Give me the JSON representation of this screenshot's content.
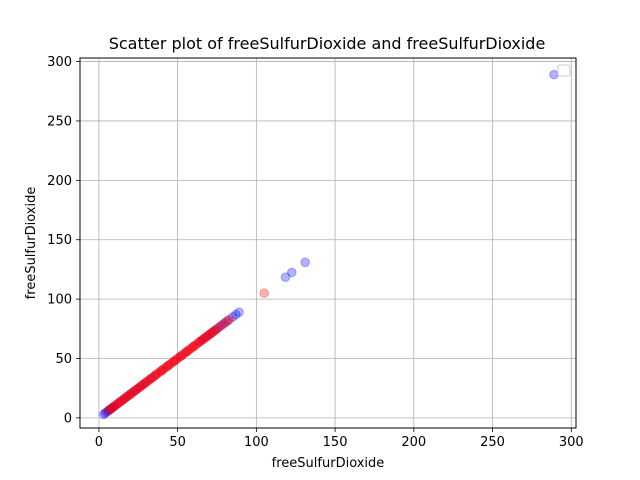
{
  "chart_data": {
    "type": "scatter",
    "title": "Scatter plot of freeSulfurDioxide and freeSulfurDioxide",
    "xlabel": "freeSulfurDioxide",
    "ylabel": "freeSulfurDioxide",
    "xlim": [
      -12,
      303
    ],
    "ylim": [
      -8.5,
      303
    ],
    "xticks": [
      0,
      50,
      100,
      150,
      200,
      250,
      300
    ],
    "yticks": [
      0,
      50,
      100,
      150,
      200,
      250,
      300
    ],
    "grid": true,
    "legend": {
      "placement": "top-right",
      "entries": []
    },
    "colors": {
      "series_a": "#0000ff",
      "series_b": "#ff0000",
      "grid": "#b0b0b0",
      "axis": "#000000"
    },
    "series": [
      {
        "color": "#0000ff",
        "alpha": 0.3,
        "points": [
          [
            3,
            3
          ],
          [
            4,
            4
          ],
          [
            5,
            5
          ],
          [
            6,
            6
          ],
          [
            7,
            7
          ],
          [
            8,
            8
          ],
          [
            9,
            9
          ],
          [
            10,
            10
          ],
          [
            12,
            12
          ],
          [
            14,
            14
          ],
          [
            16,
            16
          ],
          [
            18,
            18
          ],
          [
            20,
            20
          ],
          [
            22,
            22
          ],
          [
            24,
            24
          ],
          [
            26,
            26
          ],
          [
            28,
            28
          ],
          [
            30,
            30
          ],
          [
            33,
            33
          ],
          [
            36,
            36
          ],
          [
            40,
            40
          ],
          [
            44,
            44
          ],
          [
            48,
            48
          ],
          [
            52,
            52
          ],
          [
            56,
            56
          ],
          [
            60,
            60
          ],
          [
            64,
            64
          ],
          [
            66,
            66
          ],
          [
            68,
            68
          ],
          [
            70,
            70
          ],
          [
            72,
            72
          ],
          [
            74,
            74
          ],
          [
            76,
            76
          ],
          [
            78,
            78
          ],
          [
            80,
            80
          ],
          [
            82,
            82
          ],
          [
            85,
            85
          ],
          [
            87,
            87
          ],
          [
            89,
            89
          ],
          [
            118.5,
            118.5
          ],
          [
            122.5,
            122.5
          ],
          [
            131,
            131
          ],
          [
            289,
            289
          ]
        ]
      },
      {
        "color": "#ff0000",
        "alpha": 0.3,
        "points": [
          [
            6,
            6
          ],
          [
            7,
            7
          ],
          [
            8,
            8
          ],
          [
            9,
            9
          ],
          [
            10,
            10
          ],
          [
            11,
            11
          ],
          [
            12,
            12
          ],
          [
            13,
            13
          ],
          [
            14,
            14
          ],
          [
            15,
            15
          ],
          [
            16,
            16
          ],
          [
            17,
            17
          ],
          [
            18,
            18
          ],
          [
            19,
            19
          ],
          [
            20,
            20
          ],
          [
            21,
            21
          ],
          [
            22,
            22
          ],
          [
            23,
            23
          ],
          [
            24,
            24
          ],
          [
            25,
            25
          ],
          [
            26,
            26
          ],
          [
            27,
            27
          ],
          [
            28,
            28
          ],
          [
            29,
            29
          ],
          [
            30,
            30
          ],
          [
            31,
            31
          ],
          [
            32,
            32
          ],
          [
            33,
            33
          ],
          [
            34,
            34
          ],
          [
            35,
            35
          ],
          [
            36,
            36
          ],
          [
            37,
            37
          ],
          [
            38,
            38
          ],
          [
            39,
            39
          ],
          [
            40,
            40
          ],
          [
            41,
            41
          ],
          [
            42,
            42
          ],
          [
            43,
            43
          ],
          [
            44,
            44
          ],
          [
            45,
            45
          ],
          [
            46,
            46
          ],
          [
            47,
            47
          ],
          [
            48,
            48
          ],
          [
            49,
            49
          ],
          [
            50,
            50
          ],
          [
            51,
            51
          ],
          [
            52,
            52
          ],
          [
            53,
            53
          ],
          [
            54,
            54
          ],
          [
            55,
            55
          ],
          [
            56,
            56
          ],
          [
            57,
            57
          ],
          [
            58,
            58
          ],
          [
            59,
            59
          ],
          [
            60,
            60
          ],
          [
            61,
            61
          ],
          [
            62,
            62
          ],
          [
            63,
            63
          ],
          [
            64,
            64
          ],
          [
            65,
            65
          ],
          [
            66,
            66
          ],
          [
            67,
            67
          ],
          [
            68,
            68
          ],
          [
            69,
            69
          ],
          [
            70,
            70
          ],
          [
            71,
            71
          ],
          [
            72,
            72
          ],
          [
            73,
            73
          ],
          [
            74,
            74
          ],
          [
            75,
            75
          ],
          [
            77,
            77
          ],
          [
            79,
            79
          ],
          [
            81,
            81
          ],
          [
            83,
            83
          ],
          [
            105,
            105
          ]
        ]
      }
    ]
  }
}
